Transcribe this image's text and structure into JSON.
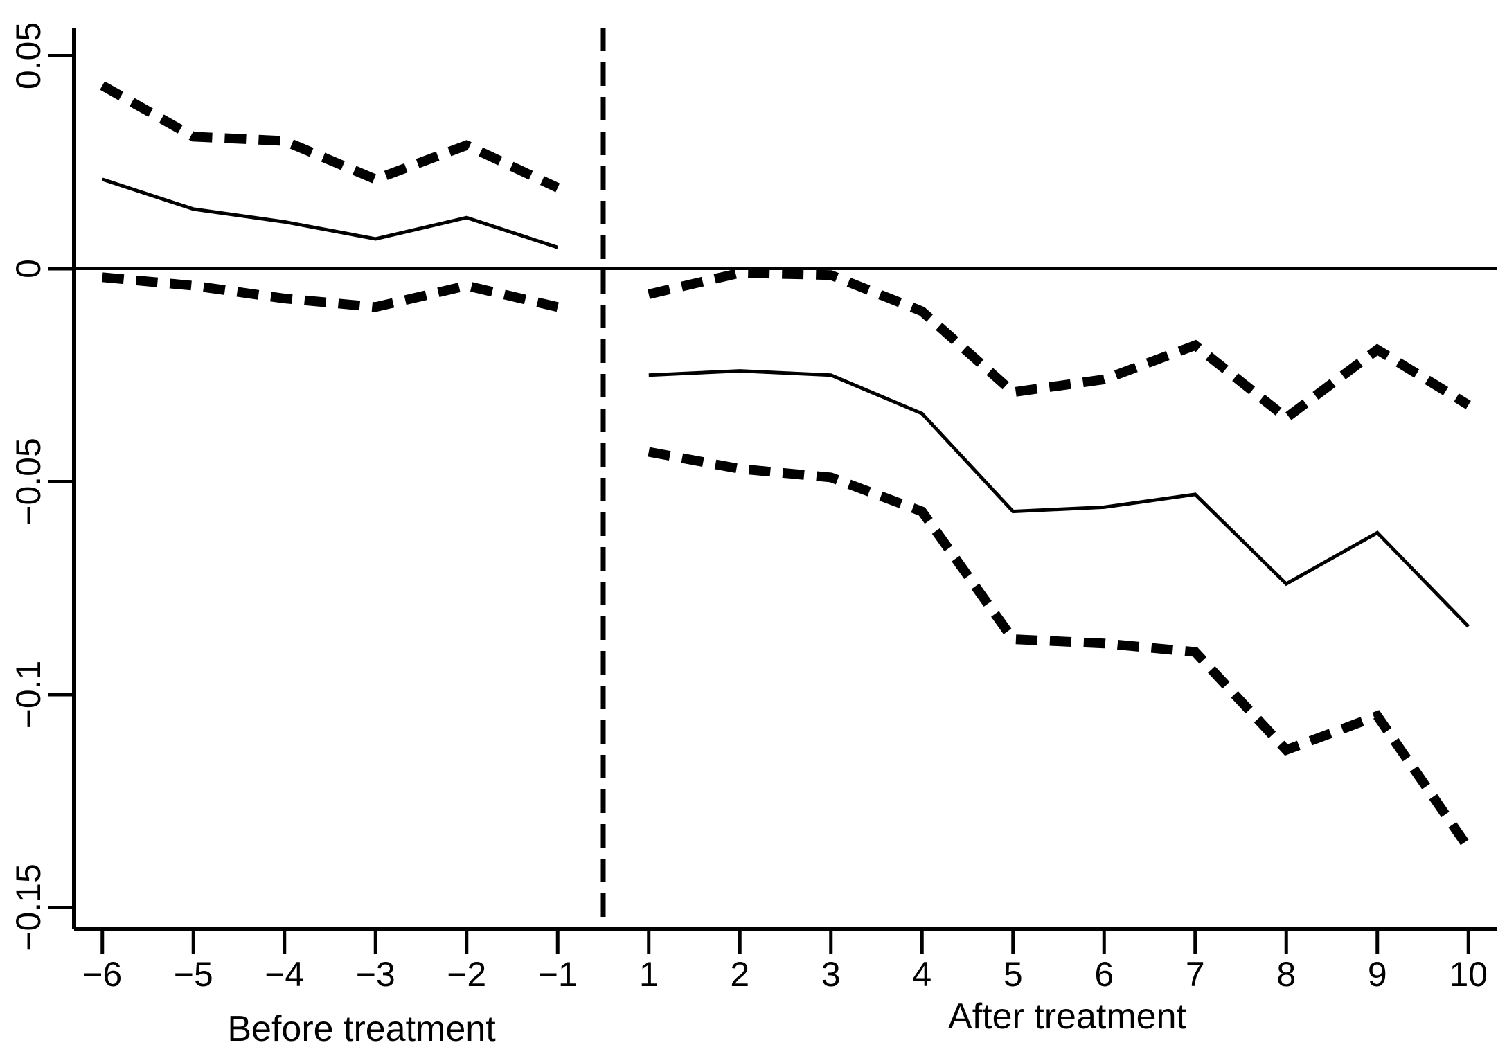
{
  "chart_data": {
    "type": "line",
    "title": "",
    "background_color": "#ffffff",
    "line_color": "#000000",
    "legend": "none",
    "grid": "off",
    "ylim": [
      -0.155,
      0.057
    ],
    "y_ticks": [
      0.05,
      0,
      -0.05,
      -0.1,
      -0.15
    ],
    "y_tick_labels": [
      "0.05",
      "0",
      "−0.05",
      "−0.1",
      "−0.15"
    ],
    "x_before": [
      -6,
      -5,
      -4,
      -3,
      -2,
      -1
    ],
    "x_after": [
      1,
      2,
      3,
      4,
      5,
      6,
      7,
      8,
      9,
      10
    ],
    "x_tick_labels": [
      "−6",
      "−5",
      "−4",
      "−3",
      "−2",
      "−1",
      "1",
      "2",
      "3",
      "4",
      "5",
      "6",
      "7",
      "8",
      "9",
      "10"
    ],
    "xlabel_before": "Before treatment",
    "xlabel_after": "After treatment",
    "zero_reference_line": 0,
    "divider_between": [
      -1,
      1
    ],
    "series": [
      {
        "name": "upper-ci-before",
        "style": "dashed",
        "x": [
          -6,
          -5,
          -4,
          -3,
          -2,
          -1
        ],
        "values": [
          0.043,
          0.031,
          0.03,
          0.021,
          0.029,
          0.019
        ]
      },
      {
        "name": "estimate-before",
        "style": "solid",
        "x": [
          -6,
          -5,
          -4,
          -3,
          -2,
          -1
        ],
        "values": [
          0.021,
          0.014,
          0.011,
          0.007,
          0.012,
          0.005
        ]
      },
      {
        "name": "lower-ci-before",
        "style": "dashed",
        "x": [
          -6,
          -5,
          -4,
          -3,
          -2,
          -1
        ],
        "values": [
          -0.002,
          -0.004,
          -0.007,
          -0.009,
          -0.004,
          -0.009
        ]
      },
      {
        "name": "upper-ci-after",
        "style": "dashed",
        "x": [
          1,
          2,
          3,
          4,
          5,
          6,
          7,
          8,
          9,
          10
        ],
        "values": [
          -0.006,
          -0.001,
          -0.0015,
          -0.01,
          -0.029,
          -0.026,
          -0.018,
          -0.035,
          -0.019,
          -0.032
        ]
      },
      {
        "name": "estimate-after",
        "style": "solid",
        "x": [
          1,
          2,
          3,
          4,
          5,
          6,
          7,
          8,
          9,
          10
        ],
        "values": [
          -0.025,
          -0.024,
          -0.025,
          -0.034,
          -0.057,
          -0.056,
          -0.053,
          -0.074,
          -0.062,
          -0.084
        ]
      },
      {
        "name": "lower-ci-after",
        "style": "dashed",
        "x": [
          1,
          2,
          3,
          4,
          5,
          6,
          7,
          8,
          9,
          10
        ],
        "values": [
          -0.043,
          -0.047,
          -0.049,
          -0.057,
          -0.087,
          -0.088,
          -0.09,
          -0.113,
          -0.105,
          -0.136
        ]
      }
    ]
  }
}
